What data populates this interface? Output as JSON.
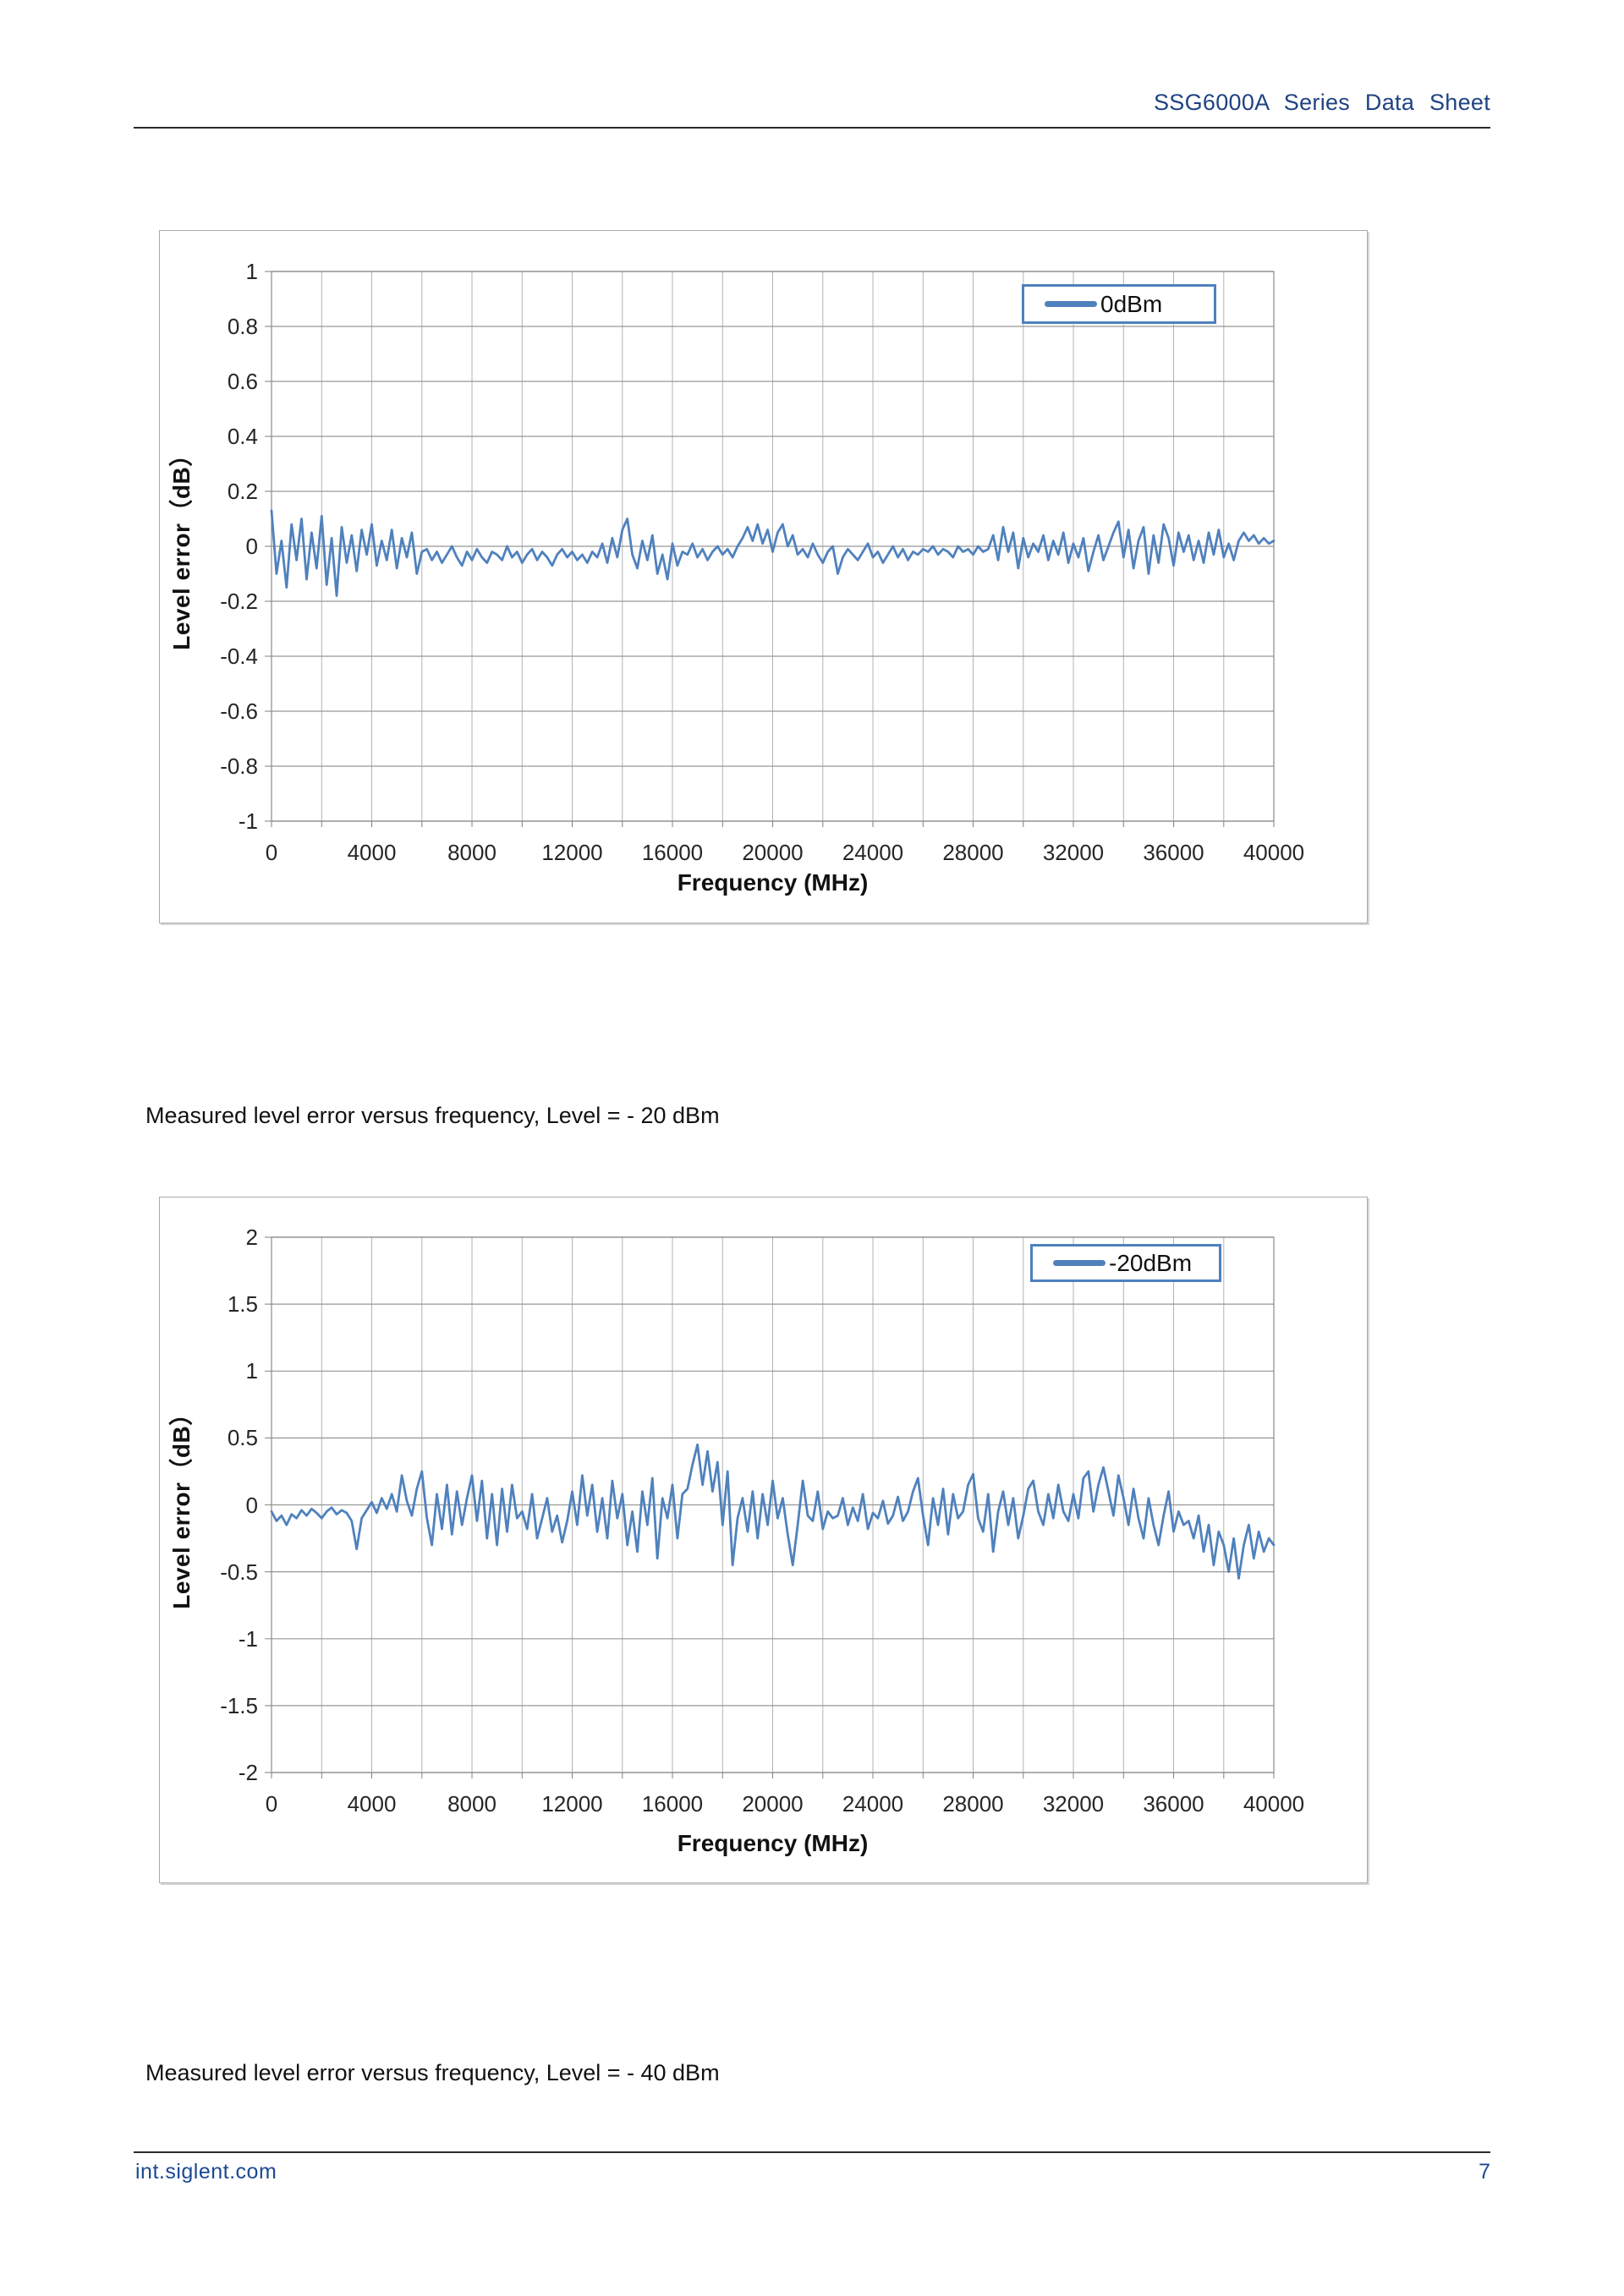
{
  "header": {
    "title": "SSG6000A Series Data Sheet"
  },
  "captions": {
    "minus20": "Measured level error versus frequency, Level = - 20 dBm",
    "minus40": "Measured level error versus frequency, Level = - 40 dBm"
  },
  "footer": {
    "site": "int.siglent.com",
    "page": "7"
  },
  "colors": {
    "series_blue": "#4F81BD",
    "header_blue": "#1F4383",
    "footer_blue": "#1B4894",
    "grid_gray": "#A6A6A6"
  },
  "chart_data": [
    {
      "type": "line",
      "xlabel": "Frequency (MHz)",
      "ylabel": "Level error（dB）",
      "xlim": [
        0,
        40000
      ],
      "ylim": [
        -1,
        1
      ],
      "x_ticks": [
        0,
        4000,
        8000,
        12000,
        16000,
        20000,
        24000,
        28000,
        32000,
        36000,
        40000
      ],
      "y_ticks": [
        1,
        0.8,
        0.6,
        0.4,
        0.2,
        0,
        -0.2,
        -0.4,
        -0.6,
        -0.8,
        -1
      ],
      "x_grid_step": 2000,
      "grid": true,
      "legend_position": "top-right",
      "series": [
        {
          "name": "0dBm",
          "color": "#4F81BD",
          "x_start": 0,
          "x_step": 200,
          "values": [
            0.13,
            -0.1,
            0.02,
            -0.15,
            0.08,
            -0.05,
            0.1,
            -0.12,
            0.05,
            -0.08,
            0.11,
            -0.14,
            0.03,
            -0.18,
            0.07,
            -0.06,
            0.04,
            -0.09,
            0.06,
            -0.03,
            0.08,
            -0.07,
            0.02,
            -0.05,
            0.06,
            -0.08,
            0.03,
            -0.04,
            0.05,
            -0.1,
            -0.02,
            -0.01,
            -0.05,
            -0.02,
            -0.06,
            -0.03,
            0.0,
            -0.04,
            -0.07,
            -0.02,
            -0.05,
            -0.01,
            -0.04,
            -0.06,
            -0.02,
            -0.03,
            -0.05,
            0.0,
            -0.04,
            -0.02,
            -0.06,
            -0.03,
            -0.01,
            -0.05,
            -0.02,
            -0.04,
            -0.07,
            -0.03,
            -0.01,
            -0.04,
            -0.02,
            -0.05,
            -0.03,
            -0.06,
            -0.02,
            -0.04,
            0.01,
            -0.06,
            0.03,
            -0.04,
            0.06,
            0.1,
            -0.03,
            -0.08,
            0.02,
            -0.05,
            0.04,
            -0.1,
            -0.03,
            -0.12,
            0.01,
            -0.07,
            -0.02,
            -0.03,
            0.01,
            -0.04,
            -0.01,
            -0.05,
            -0.02,
            0.0,
            -0.03,
            -0.01,
            -0.04,
            0.0,
            0.03,
            0.07,
            0.02,
            0.08,
            0.01,
            0.06,
            -0.02,
            0.05,
            0.08,
            0.0,
            0.04,
            -0.03,
            -0.01,
            -0.04,
            0.01,
            -0.03,
            -0.06,
            -0.02,
            0.0,
            -0.1,
            -0.04,
            -0.01,
            -0.03,
            -0.05,
            -0.02,
            0.01,
            -0.04,
            -0.02,
            -0.06,
            -0.03,
            0.0,
            -0.04,
            -0.01,
            -0.05,
            -0.02,
            -0.03,
            -0.01,
            -0.02,
            0.0,
            -0.03,
            -0.01,
            -0.02,
            -0.04,
            0.0,
            -0.02,
            -0.01,
            -0.03,
            0.0,
            -0.02,
            -0.01,
            0.04,
            -0.05,
            0.07,
            -0.02,
            0.05,
            -0.08,
            0.03,
            -0.04,
            0.01,
            -0.02,
            0.04,
            -0.05,
            0.02,
            -0.03,
            0.05,
            -0.06,
            0.01,
            -0.04,
            0.03,
            -0.09,
            -0.02,
            0.04,
            -0.05,
            0.0,
            0.05,
            0.09,
            -0.04,
            0.06,
            -0.08,
            0.02,
            0.07,
            -0.1,
            0.04,
            -0.06,
            0.08,
            0.03,
            -0.07,
            0.05,
            -0.02,
            0.04,
            -0.05,
            0.02,
            -0.06,
            0.05,
            -0.03,
            0.06,
            -0.04,
            0.01,
            -0.05,
            0.02,
            0.05,
            0.02,
            0.04,
            0.01,
            0.03,
            0.01,
            0.02
          ]
        }
      ]
    },
    {
      "type": "line",
      "xlabel": "Frequency (MHz)",
      "ylabel": "Level error（dB）",
      "xlim": [
        0,
        40000
      ],
      "ylim": [
        -2,
        2
      ],
      "x_ticks": [
        0,
        4000,
        8000,
        12000,
        16000,
        20000,
        24000,
        28000,
        32000,
        36000,
        40000
      ],
      "y_ticks": [
        2,
        1.5,
        1,
        0.5,
        0,
        -0.5,
        -1,
        -1.5,
        -2
      ],
      "x_grid_step": 2000,
      "grid": true,
      "legend_position": "top-right",
      "series": [
        {
          "name": "-20dBm",
          "color": "#4F81BD",
          "x_start": 0,
          "x_step": 200,
          "values": [
            -0.05,
            -0.12,
            -0.08,
            -0.15,
            -0.07,
            -0.1,
            -0.04,
            -0.08,
            -0.03,
            -0.06,
            -0.1,
            -0.05,
            -0.02,
            -0.07,
            -0.04,
            -0.06,
            -0.12,
            -0.33,
            -0.1,
            -0.04,
            0.02,
            -0.06,
            0.05,
            -0.03,
            0.08,
            -0.05,
            0.22,
            0.03,
            -0.08,
            0.12,
            0.25,
            -0.1,
            -0.3,
            0.08,
            -0.18,
            0.15,
            -0.22,
            0.1,
            -0.15,
            0.05,
            0.22,
            -0.12,
            0.18,
            -0.25,
            0.08,
            -0.3,
            0.12,
            -0.2,
            0.15,
            -0.1,
            -0.05,
            -0.18,
            0.08,
            -0.25,
            -0.1,
            0.05,
            -0.2,
            -0.08,
            -0.28,
            -0.12,
            0.1,
            -0.15,
            0.22,
            -0.08,
            0.15,
            -0.2,
            0.05,
            -0.25,
            0.18,
            -0.1,
            0.08,
            -0.3,
            -0.05,
            -0.35,
            0.1,
            -0.15,
            0.2,
            -0.4,
            0.05,
            -0.1,
            0.15,
            -0.25,
            0.08,
            0.12,
            0.3,
            0.45,
            0.15,
            0.4,
            0.1,
            0.32,
            -0.15,
            0.25,
            -0.45,
            -0.1,
            0.05,
            -0.2,
            0.1,
            -0.25,
            0.08,
            -0.15,
            0.18,
            -0.1,
            0.05,
            -0.22,
            -0.45,
            -0.15,
            0.18,
            -0.08,
            -0.12,
            0.1,
            -0.18,
            -0.05,
            -0.1,
            -0.08,
            0.05,
            -0.15,
            -0.02,
            -0.12,
            0.08,
            -0.18,
            -0.06,
            -0.1,
            0.03,
            -0.14,
            -0.08,
            0.06,
            -0.12,
            -0.05,
            0.1,
            0.2,
            -0.08,
            -0.3,
            0.05,
            -0.15,
            0.12,
            -0.22,
            0.08,
            -0.1,
            -0.05,
            0.15,
            0.23,
            -0.1,
            -0.2,
            0.08,
            -0.35,
            -0.05,
            0.1,
            -0.15,
            0.05,
            -0.25,
            -0.08,
            0.12,
            0.18,
            -0.05,
            -0.15,
            0.08,
            -0.1,
            0.15,
            -0.05,
            -0.12,
            0.08,
            -0.1,
            0.2,
            0.25,
            -0.05,
            0.15,
            0.28,
            0.1,
            -0.08,
            0.22,
            0.05,
            -0.15,
            0.12,
            -0.1,
            -0.25,
            0.05,
            -0.15,
            -0.3,
            -0.08,
            0.1,
            -0.2,
            -0.05,
            -0.15,
            -0.12,
            -0.25,
            -0.08,
            -0.35,
            -0.15,
            -0.45,
            -0.2,
            -0.3,
            -0.5,
            -0.25,
            -0.55,
            -0.3,
            -0.15,
            -0.4,
            -0.2,
            -0.35,
            -0.25,
            -0.3
          ]
        }
      ]
    }
  ]
}
